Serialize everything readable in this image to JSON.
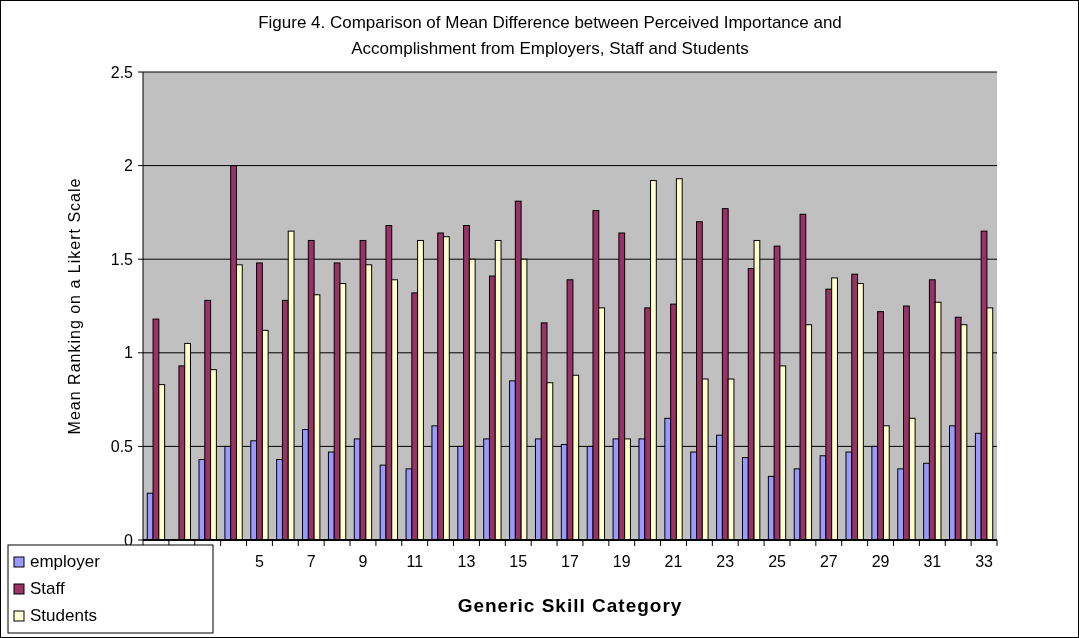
{
  "chart_data": {
    "type": "bar",
    "title": "Figure 4. Comparison of Mean Difference between Perceived Importance and Accomplishment from Employers, Staff and Students",
    "xlabel": "Generic Skill Category",
    "ylabel": "Mean Ranking on a Likert Scale",
    "categories": [
      null,
      null,
      null,
      null,
      "5",
      null,
      "7",
      null,
      "9",
      null,
      "11",
      null,
      "13",
      null,
      "15",
      null,
      "17",
      null,
      "19",
      null,
      "21",
      null,
      "23",
      null,
      "25",
      null,
      "27",
      null,
      "29",
      null,
      "31",
      null,
      "33"
    ],
    "series": [
      {
        "name": "employer",
        "color": "#9999ff",
        "values": [
          0.25,
          0,
          0.43,
          0.5,
          0.53,
          0.43,
          0.59,
          0.47,
          0.54,
          0.4,
          0.38,
          0.61,
          0.5,
          0.54,
          0.85,
          0.54,
          0.51,
          0.5,
          0.54,
          0.54,
          0.65,
          0.47,
          0.56,
          0.44,
          0.34,
          0.38,
          0.45,
          0.47,
          0.5,
          0.38,
          0.41,
          0.61,
          0.57
        ]
      },
      {
        "name": "Staff",
        "color": "#993366",
        "values": [
          1.18,
          0.93,
          1.28,
          2.0,
          1.48,
          1.28,
          1.6,
          1.48,
          1.6,
          1.68,
          1.32,
          1.64,
          1.68,
          1.41,
          1.81,
          1.16,
          1.39,
          1.76,
          1.64,
          1.24,
          1.26,
          1.7,
          1.77,
          1.45,
          1.57,
          1.74,
          1.34,
          1.42,
          1.22,
          1.25,
          1.39,
          1.19,
          1.65
        ]
      },
      {
        "name": "Students",
        "color": "#ffffcc",
        "values": [
          0.83,
          1.05,
          0.91,
          1.47,
          1.12,
          1.65,
          1.31,
          1.37,
          1.47,
          1.39,
          1.6,
          1.62,
          1.5,
          1.6,
          1.5,
          0.84,
          0.88,
          1.24,
          0.54,
          1.92,
          1.93,
          0.86,
          0.86,
          1.6,
          0.93,
          1.15,
          1.4,
          1.37,
          0.61,
          0.65,
          1.27,
          1.15,
          1.24
        ]
      }
    ],
    "ylim": [
      0,
      2.5
    ],
    "yticks": [
      0,
      0.5,
      1,
      1.5,
      2,
      2.5
    ],
    "grid": "y",
    "legend": "bottom left"
  }
}
